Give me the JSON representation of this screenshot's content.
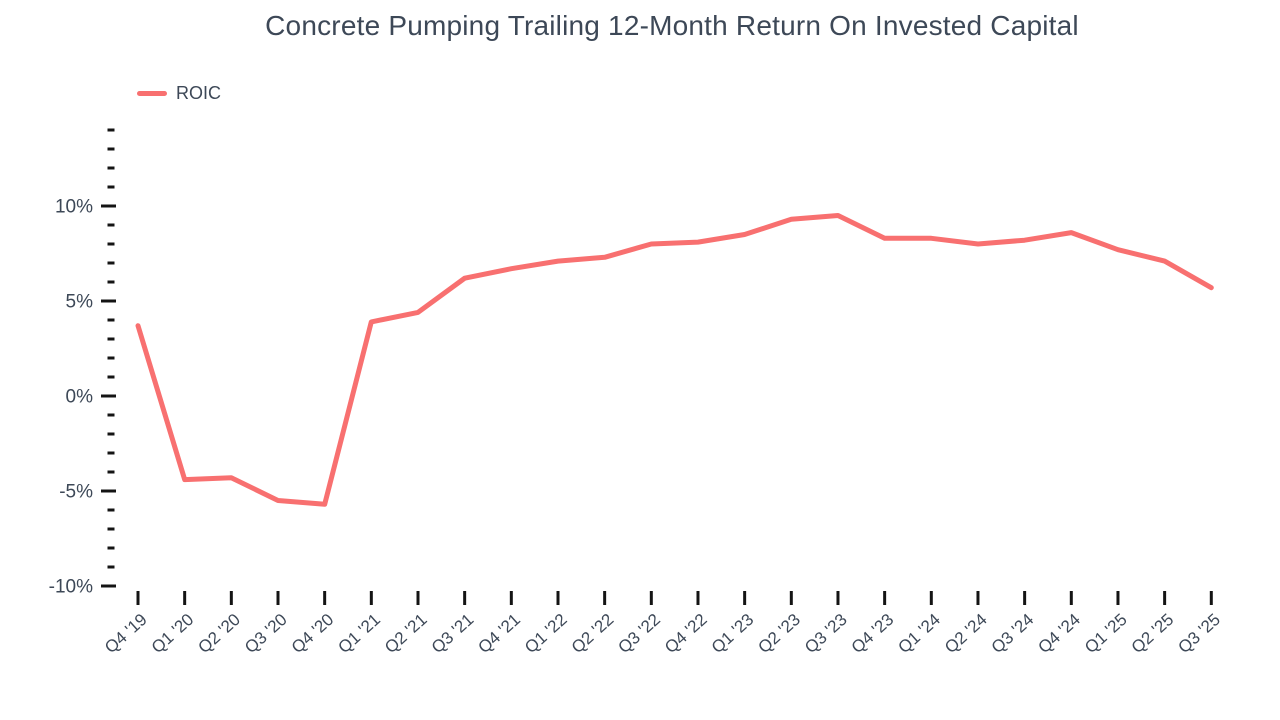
{
  "page": {
    "background_color": "#ffffff",
    "text_color": "#3d4857",
    "tick_color": "#141414"
  },
  "chart_data": {
    "type": "line",
    "title": "Concrete Pumping Trailing 12-Month Return On Invested Capital",
    "legend": [
      {
        "label": "ROIC",
        "color": "#f87070"
      }
    ],
    "legend_position": "top-left",
    "grid": false,
    "categories": [
      "Q4 '19",
      "Q1 '20",
      "Q2 '20",
      "Q3 '20",
      "Q4 '20",
      "Q1 '21",
      "Q2 '21",
      "Q3 '21",
      "Q4 '21",
      "Q1 '22",
      "Q2 '22",
      "Q3 '22",
      "Q4 '22",
      "Q1 '23",
      "Q2 '23",
      "Q3 '23",
      "Q4 '23",
      "Q1 '24",
      "Q2 '24",
      "Q3 '24",
      "Q4 '24",
      "Q1 '25",
      "Q2 '25",
      "Q3 '25"
    ],
    "series": [
      {
        "name": "ROIC",
        "values": [
          3.7,
          -4.4,
          -4.3,
          -5.5,
          -5.7,
          3.9,
          4.4,
          6.2,
          6.7,
          7.1,
          7.3,
          8.0,
          8.1,
          8.5,
          9.3,
          9.5,
          8.3,
          8.3,
          8.0,
          8.2,
          8.6,
          7.7,
          7.1,
          5.7
        ]
      }
    ],
    "xlabel": "",
    "ylabel": "",
    "ylim": [
      -10,
      14
    ],
    "ytick_major_step": 5,
    "ytick_minor_step": 1,
    "ytick_labels": [
      "10%",
      "5%",
      "0%",
      "-5%",
      "-10%"
    ],
    "ytick_label_format": "percent",
    "line_color": "#f87070"
  }
}
